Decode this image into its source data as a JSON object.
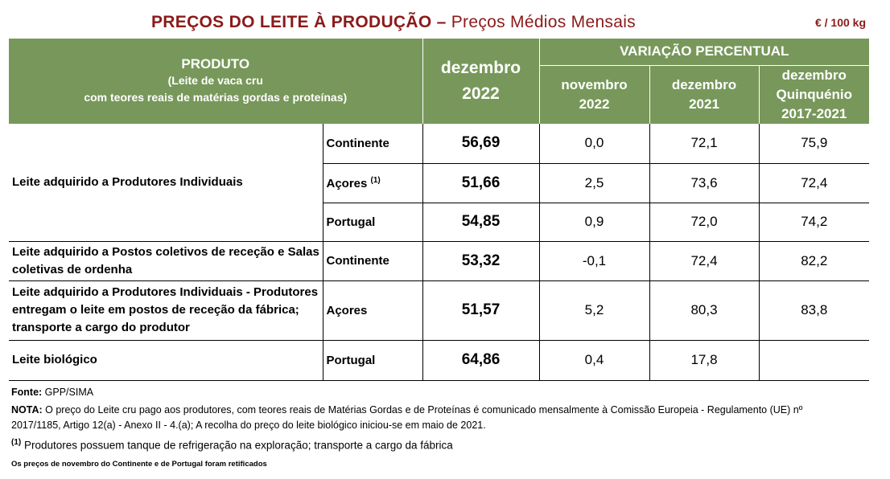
{
  "title": {
    "main": "PREÇOS DO LEITE À PRODUÇÃO",
    "separator": " – ",
    "sub": "Preços Médios Mensais",
    "unit": "€ / 100 kg"
  },
  "header": {
    "produto": "PRODUTO",
    "produto_sub1": "(Leite de vaca cru",
    "produto_sub2": "com teores reais de matérias gordas e proteínas)",
    "month_line1": "dezembro",
    "month_line2": "2022",
    "variacao": "VARIAÇÃO PERCENTUAL",
    "col1_l1": "novembro",
    "col1_l2": "2022",
    "col2_l1": "dezembro",
    "col2_l2": "2021",
    "col3_l1": "dezembro",
    "col3_l2": "Quinquénio",
    "col3_l3": "2017-2021"
  },
  "groups": {
    "g1": "Leite adquirido a Produtores Individuais",
    "g2": "Leite adquirido a Postos coletivos de receção e Salas coletivas de ordenha",
    "g3": "Leite adquirido a Produtores Individuais - Produtores entregam o leite em postos de receção da fábrica; transporte a cargo do produtor",
    "g4": "Leite biológico"
  },
  "rows": [
    {
      "region": "Continente",
      "price": "56,69",
      "v1": "0,0",
      "v2": "72,1",
      "v3": "75,9"
    },
    {
      "region": "Açores",
      "sup": "(1)",
      "price": "51,66",
      "v1": "2,5",
      "v2": "73,6",
      "v3": "72,4"
    },
    {
      "region": "Portugal",
      "price": "54,85",
      "v1": "0,9",
      "v2": "72,0",
      "v3": "74,2"
    },
    {
      "region": "Continente",
      "price": "53,32",
      "v1": "-0,1",
      "v2": "72,4",
      "v3": "82,2"
    },
    {
      "region": "Açores",
      "price": "51,57",
      "v1": "5,2",
      "v2": "80,3",
      "v3": "83,8"
    },
    {
      "region": "Portugal",
      "price": "64,86",
      "v1": "0,4",
      "v2": "17,8",
      "v3": ""
    }
  ],
  "footer": {
    "fonte_label": "Fonte:",
    "fonte_value": " GPP/SIMA",
    "nota_label": "NOTA:",
    "nota_line1": " O preço do Leite cru pago aos produtores, com teores reais de Matérias Gordas e de Proteínas é comunicado mensalmente à Comissão Europeia - Regulamento (UE) nº",
    "nota_line2": "2017/1185, Artigo 12(a) - Anexo II - 4.(a); A recolha do preço do leite biológico iniciou-se em maio de 2021.",
    "footnote_mark": "(1)",
    "footnote_text": " Produtores possuem tanque de refrigeração na exploração; transporte a cargo da fábrica",
    "retificados": "Os preços de novembro do Continente e de Portugal foram retificados"
  }
}
